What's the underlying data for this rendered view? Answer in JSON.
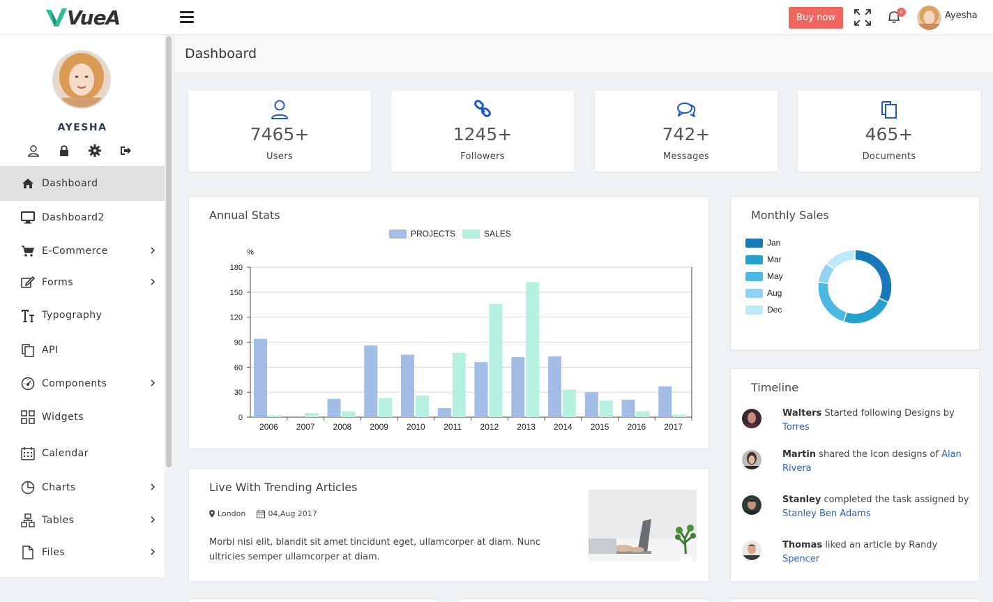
{
  "header": {
    "logo_text": "VueA",
    "buy_label": "Buy now",
    "notifications_count": "4",
    "username": "Ayesha"
  },
  "sidebar": {
    "profile_name": "AYESHA",
    "items": [
      {
        "label": "Dashboard",
        "icon": "home-icon",
        "active": true,
        "has_submenu": false
      },
      {
        "label": "Dashboard2",
        "icon": "monitor-icon",
        "active": false,
        "has_submenu": false
      },
      {
        "label": "E-Commerce",
        "icon": "cart-icon",
        "active": false,
        "has_submenu": true
      },
      {
        "label": "Forms",
        "icon": "edit-icon",
        "active": false,
        "has_submenu": true
      },
      {
        "label": "Typography",
        "icon": "text-icon",
        "active": false,
        "has_submenu": false
      },
      {
        "label": "API",
        "icon": "copy-icon",
        "active": false,
        "has_submenu": false
      },
      {
        "label": "Components",
        "icon": "gauge-icon",
        "active": false,
        "has_submenu": true
      },
      {
        "label": "Widgets",
        "icon": "grid-icon",
        "active": false,
        "has_submenu": false
      },
      {
        "label": "Calendar",
        "icon": "calendar-icon",
        "active": false,
        "has_submenu": false
      },
      {
        "label": "Charts",
        "icon": "pie-chart-icon",
        "active": false,
        "has_submenu": true
      },
      {
        "label": "Tables",
        "icon": "sitemap-icon",
        "active": false,
        "has_submenu": true
      },
      {
        "label": "Files",
        "icon": "file-icon",
        "active": false,
        "has_submenu": true
      }
    ]
  },
  "page": {
    "title": "Dashboard"
  },
  "stats": [
    {
      "value": "7465+",
      "label": "Users",
      "icon": "user-icon"
    },
    {
      "value": "1245+",
      "label": "Followers",
      "icon": "link-icon"
    },
    {
      "value": "742+",
      "label": "Messages",
      "icon": "comments-icon"
    },
    {
      "value": "465+",
      "label": "Documents",
      "icon": "documents-icon"
    }
  ],
  "colors": {
    "accent": "#1d57c7",
    "buy": "#f1665f",
    "projects": "#a3bde6",
    "sales": "#b6f0e0"
  },
  "annual_stats": {
    "title": "Annual Stats"
  },
  "monthly_sales": {
    "title": "Monthly Sales"
  },
  "chart_data": [
    {
      "type": "bar",
      "title": "Annual Stats",
      "ylabel": "%",
      "ylim": [
        0,
        180
      ],
      "yticks": [
        0,
        30,
        60,
        90,
        120,
        150,
        180
      ],
      "categories": [
        "2006",
        "2007",
        "2008",
        "2009",
        "2010",
        "2011",
        "2012",
        "2013",
        "2014",
        "2015",
        "2016",
        "2017"
      ],
      "series": [
        {
          "name": "PROJECTS",
          "color": "#a3bde6",
          "values": [
            94,
            0,
            22,
            86,
            75,
            11,
            66,
            72,
            73,
            30,
            21,
            37
          ]
        },
        {
          "name": "SALES",
          "color": "#b6f0e0",
          "values": [
            2,
            5,
            7,
            23,
            26,
            77,
            136,
            162,
            33,
            20,
            7,
            3
          ]
        }
      ],
      "grid": true,
      "legend": "top-center"
    },
    {
      "type": "pie",
      "title": "Monthly Sales",
      "donut": true,
      "legend": "left",
      "labels": [
        "Jan",
        "Mar",
        "May",
        "Aug",
        "Dec"
      ],
      "colors": [
        "#1779ba",
        "#26a0cc",
        "#4ab8e2",
        "#8fd3f2",
        "#bde9f8"
      ],
      "values": [
        32,
        23,
        22,
        9,
        14
      ]
    }
  ],
  "article": {
    "title": "Live With Trending Articles",
    "location": "London",
    "date": "04,Aug 2017",
    "body": "Morbi nisi elit, blandit sit amet tincidunt eget, ullamcorper at diam. Nunc ultricies semper ullamcorper at diam."
  },
  "timeline": {
    "title": "Timeline",
    "items": [
      {
        "name": "Walters",
        "text": " Started following Designs by ",
        "link": "Torres"
      },
      {
        "name": "Martin",
        "text": " shared the Icon designs of ",
        "link": "Alan Rivera"
      },
      {
        "name": "Stanley",
        "text": " completed the task assigned by ",
        "link": "Stanley Ben Adams"
      },
      {
        "name": "Thomas",
        "text": " liked an article by Randy ",
        "link": "Spencer"
      }
    ]
  }
}
